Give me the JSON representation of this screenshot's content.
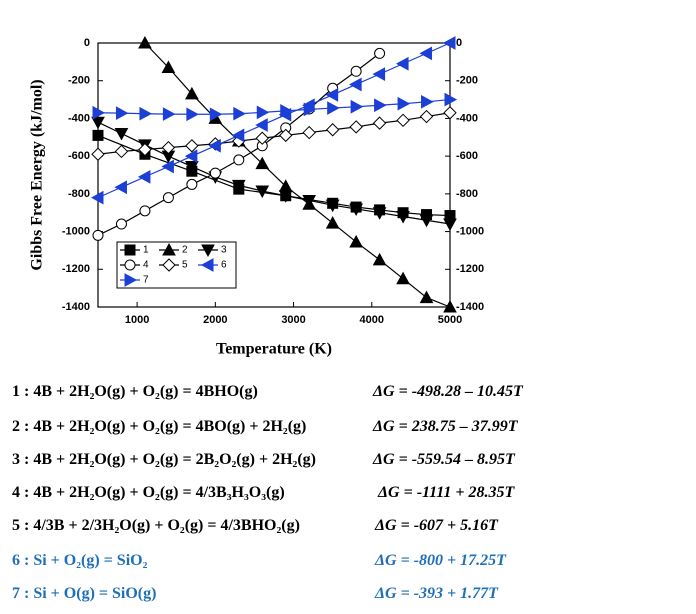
{
  "chart_data": {
    "type": "line",
    "xlabel": "Temperature (K)",
    "ylabel": "Gibbs Free Energy (kJ/mol)",
    "xlim": [
      500,
      5000
    ],
    "xticks": [
      1000,
      2000,
      3000,
      4000,
      5000
    ],
    "ylim": [
      -1400,
      0
    ],
    "yticks": [
      0,
      -200,
      -400,
      -600,
      -800,
      -1000,
      -1200,
      -1400
    ],
    "y2lim": [
      -1400,
      0
    ],
    "y2ticks": [
      0,
      -200,
      -400,
      -600,
      -800,
      -1000,
      -1200,
      -1400
    ],
    "series": [
      {
        "name": "1",
        "color": "#000000",
        "marker": "square",
        "x": [
          500,
          1100,
          1700,
          2300,
          2900,
          3500,
          3800,
          4100,
          4400,
          4700,
          5000
        ],
        "values": [
          -490,
          -590,
          -680,
          -775,
          -810,
          -850,
          -870,
          -885,
          -900,
          -910,
          -915
        ]
      },
      {
        "name": "2",
        "color": "#000000",
        "marker": "triangle-up",
        "x": [
          1100,
          1400,
          1700,
          2000,
          2300,
          2600,
          2900,
          3200,
          3500,
          3800,
          4100,
          4400,
          4700,
          5000
        ],
        "values": [
          0,
          -130,
          -270,
          -400,
          -520,
          -640,
          -760,
          -855,
          -955,
          -1055,
          -1150,
          -1250,
          -1350,
          -1400
        ]
      },
      {
        "name": "3",
        "color": "#000000",
        "marker": "triangle-down",
        "x": [
          500,
          800,
          1100,
          1400,
          1700,
          2000,
          2300,
          2600,
          2900,
          3200,
          3500,
          3800,
          4100,
          4400,
          4700,
          5000
        ],
        "values": [
          -420,
          -480,
          -540,
          -600,
          -655,
          -710,
          -755,
          -785,
          -810,
          -835,
          -860,
          -880,
          -900,
          -920,
          -940,
          -960
        ]
      },
      {
        "name": "4",
        "color": "#000000",
        "marker": "circle",
        "x": [
          500,
          800,
          1100,
          1400,
          1700,
          2000,
          2300,
          2600,
          2900,
          3200,
          3500,
          3800,
          4100
        ],
        "values": [
          -1020,
          -960,
          -890,
          -820,
          -750,
          -690,
          -620,
          -545,
          -450,
          -350,
          -240,
          -150,
          -55
        ]
      },
      {
        "name": "5",
        "color": "#000000",
        "marker": "diamond",
        "x": [
          500,
          800,
          1100,
          1400,
          1700,
          2000,
          2300,
          2600,
          2900,
          3200,
          3500,
          3800,
          4100,
          4400,
          4700,
          5000
        ],
        "values": [
          -590,
          -575,
          -565,
          -555,
          -545,
          -535,
          -520,
          -505,
          -490,
          -475,
          -460,
          -445,
          -425,
          -410,
          -390,
          -370
        ]
      },
      {
        "name": "6",
        "color": "#1c3fd6",
        "marker": "triangle-left",
        "x": [
          500,
          800,
          1100,
          1400,
          1700,
          2000,
          2300,
          2600,
          2900,
          3200,
          3500,
          3800,
          4100,
          4400,
          4700,
          5000
        ],
        "values": [
          -820,
          -765,
          -710,
          -655,
          -600,
          -545,
          -490,
          -435,
          -380,
          -330,
          -275,
          -220,
          -165,
          -110,
          -55,
          0
        ]
      },
      {
        "name": "7",
        "color": "#1c3fd6",
        "marker": "triangle-right",
        "x": [
          500,
          800,
          1100,
          1400,
          1700,
          2000,
          2300,
          2600,
          2900,
          3200,
          3500,
          3800,
          4100,
          4400,
          4700,
          5000
        ],
        "values": [
          -370,
          -372,
          -375,
          -377,
          -378,
          -378,
          -375,
          -368,
          -360,
          -352,
          -345,
          -338,
          -330,
          -322,
          -312,
          -300
        ]
      }
    ]
  },
  "equations": [
    {
      "reaction": "1 : 4B + 2H₂O(g)  + O₂(g) = 4BHO(g)",
      "delta_g": "ΔG = -498.28 – 10.45T"
    },
    {
      "reaction": "2 : 4B + 2H₂O(g)  + O₂(g) = 4BO(g) + 2H₂(g)",
      "delta_g": "ΔG = 238.75 – 37.99T"
    },
    {
      "reaction": "3 : 4B + 2H₂O(g)  + O₂(g) = 2B₂O₂(g) + 2H₂(g)",
      "delta_g": "ΔG = -559.54 – 8.95T"
    },
    {
      "reaction": "4 : 4B + 2H₂O(g)  + O₂(g) = 4/3B₃H₃O₃(g)",
      "delta_g": "ΔG = -1111 + 28.35T"
    },
    {
      "reaction": "5 : 4/3B + 2/3H₂O(g)  + O₂(g) = 4/3BHO₂(g)",
      "delta_g": "ΔG = -607 + 5.16T"
    },
    {
      "reaction": "6 : Si + O₂(g) = SiO₂",
      "delta_g": "ΔG = -800 + 17.25T"
    },
    {
      "reaction": "7 : Si + O(g) = SiO(g)",
      "delta_g": "ΔG = -393 + 1.77T"
    }
  ]
}
